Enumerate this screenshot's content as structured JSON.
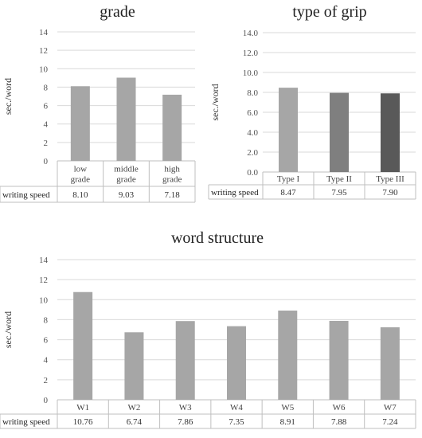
{
  "chart_data": [
    {
      "type": "bar",
      "title": "grade",
      "ylabel": "sec./word",
      "ylim": [
        0,
        14
      ],
      "yticks": [
        "0",
        "2",
        "4",
        "6",
        "8",
        "10",
        "12",
        "14"
      ],
      "categories": [
        [
          "low",
          "grade"
        ],
        [
          "middle",
          "grade"
        ],
        [
          "high",
          "grade"
        ]
      ],
      "table_row_label": "writing speed",
      "series": [
        {
          "values": [
            8.1,
            9.03,
            7.18
          ],
          "labels": [
            "8.10",
            "9.03",
            "7.18"
          ]
        }
      ],
      "bar_colors": [
        "#a6a6a6",
        "#a6a6a6",
        "#a6a6a6"
      ],
      "grid": true,
      "legend": "none"
    },
    {
      "type": "bar",
      "title": "type of grip",
      "ylabel": "sec./word",
      "ylim": [
        0,
        14
      ],
      "yticks": [
        "0.0",
        "2.0",
        "4.0",
        "6.0",
        "8.0",
        "10.0",
        "12.0",
        "14.0"
      ],
      "categories": [
        [
          "Type I"
        ],
        [
          "Type II"
        ],
        [
          "Type III"
        ]
      ],
      "table_row_label": "writing speed",
      "series": [
        {
          "values": [
            8.47,
            7.95,
            7.9
          ],
          "labels": [
            "8.47",
            "7.95",
            "7.90"
          ]
        }
      ],
      "bar_colors": [
        "#a6a6a6",
        "#7f7f7f",
        "#595959"
      ],
      "grid": true,
      "legend": "none"
    },
    {
      "type": "bar",
      "title": "word structure",
      "ylabel": "sec./word",
      "ylim": [
        0,
        14
      ],
      "yticks": [
        "0",
        "2",
        "4",
        "6",
        "8",
        "10",
        "12",
        "14"
      ],
      "categories": [
        [
          "W1"
        ],
        [
          "W2"
        ],
        [
          "W3"
        ],
        [
          "W4"
        ],
        [
          "W5"
        ],
        [
          "W6"
        ],
        [
          "W7"
        ]
      ],
      "table_row_label": "writing speed",
      "series": [
        {
          "values": [
            10.76,
            6.74,
            7.86,
            7.35,
            8.91,
            7.88,
            7.24
          ],
          "labels": [
            "10.76",
            "6.74",
            "7.86",
            "7.35",
            "8.91",
            "7.88",
            "7.24"
          ]
        }
      ],
      "bar_colors": [
        "#a6a6a6",
        "#a6a6a6",
        "#a6a6a6",
        "#a6a6a6",
        "#a6a6a6",
        "#a6a6a6",
        "#a6a6a6"
      ],
      "grid": true,
      "legend": "none"
    }
  ]
}
